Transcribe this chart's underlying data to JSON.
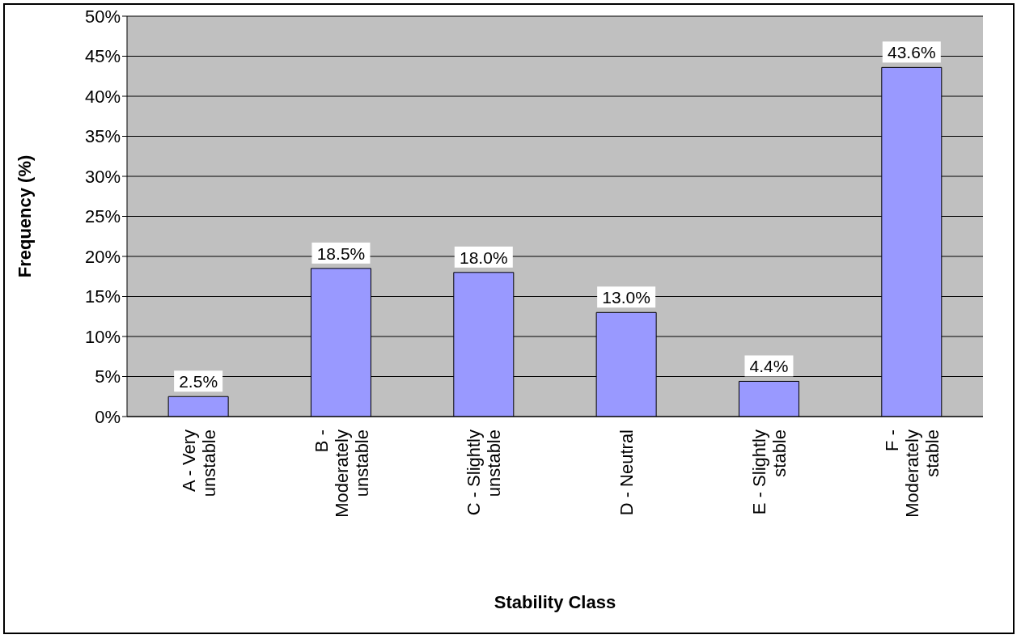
{
  "chart_data": {
    "type": "bar",
    "categories": [
      "A - Very unstable",
      "B - Moderately unstable",
      "C - Slightly unstable",
      "D - Neutral",
      "E - Slightly stable",
      "F - Moderately stable"
    ],
    "values": [
      2.5,
      18.5,
      18.0,
      13.0,
      4.4,
      43.6
    ],
    "value_labels": [
      "2.5%",
      "18.5%",
      "18.0%",
      "13.0%",
      "4.4%",
      "43.6%"
    ],
    "color": "#9999ff",
    "xlabel": "Stability Class",
    "ylabel": "Frequency (%)",
    "ylim": [
      0,
      50
    ],
    "yticks": [
      {
        "value": 0,
        "label": "0%"
      },
      {
        "value": 5,
        "label": "5%"
      },
      {
        "value": 10,
        "label": "10%"
      },
      {
        "value": 15,
        "label": "15%"
      },
      {
        "value": 20,
        "label": "20%"
      },
      {
        "value": 25,
        "label": "25%"
      },
      {
        "value": 30,
        "label": "30%"
      },
      {
        "value": 35,
        "label": "35%"
      },
      {
        "value": 40,
        "label": "40%"
      },
      {
        "value": 45,
        "label": "45%"
      },
      {
        "value": 50,
        "label": "50%"
      }
    ],
    "grid": "y",
    "legend": false
  }
}
